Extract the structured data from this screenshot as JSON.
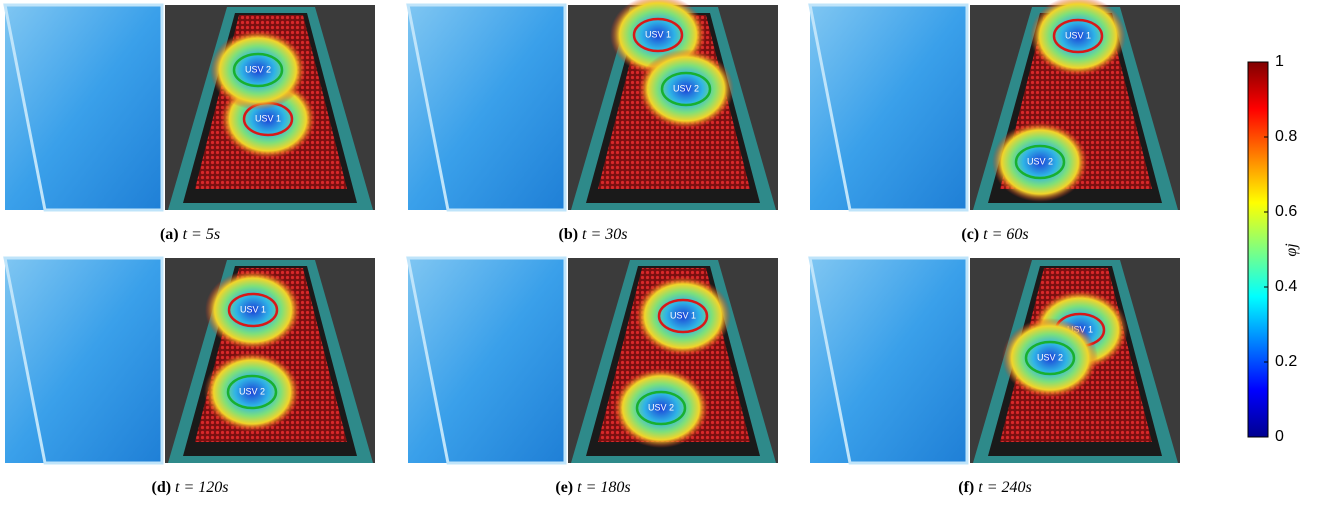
{
  "panels": [
    {
      "label": "(a)",
      "time": "t = 5s",
      "usv1": "USV 1",
      "usv2": "USV 2"
    },
    {
      "label": "(b)",
      "time": "t = 30s",
      "usv1": "USV 1",
      "usv2": "USV 2"
    },
    {
      "label": "(c)",
      "time": "t = 60s",
      "usv1": "USV 1",
      "usv2": "USV 2"
    },
    {
      "label": "(d)",
      "time": "t = 120s",
      "usv1": "USV 1",
      "usv2": "USV 2"
    },
    {
      "label": "(e)",
      "time": "t = 180s",
      "usv1": "USV 1",
      "usv2": "USV 2"
    },
    {
      "label": "(f)",
      "time": "t = 240s",
      "usv1": "USV 1",
      "usv2": "USV 2"
    }
  ],
  "colorbar": {
    "label": "φj",
    "lim": [
      0,
      1
    ],
    "ticks": [
      0,
      0.2,
      0.4,
      0.6,
      0.8,
      1
    ]
  }
}
